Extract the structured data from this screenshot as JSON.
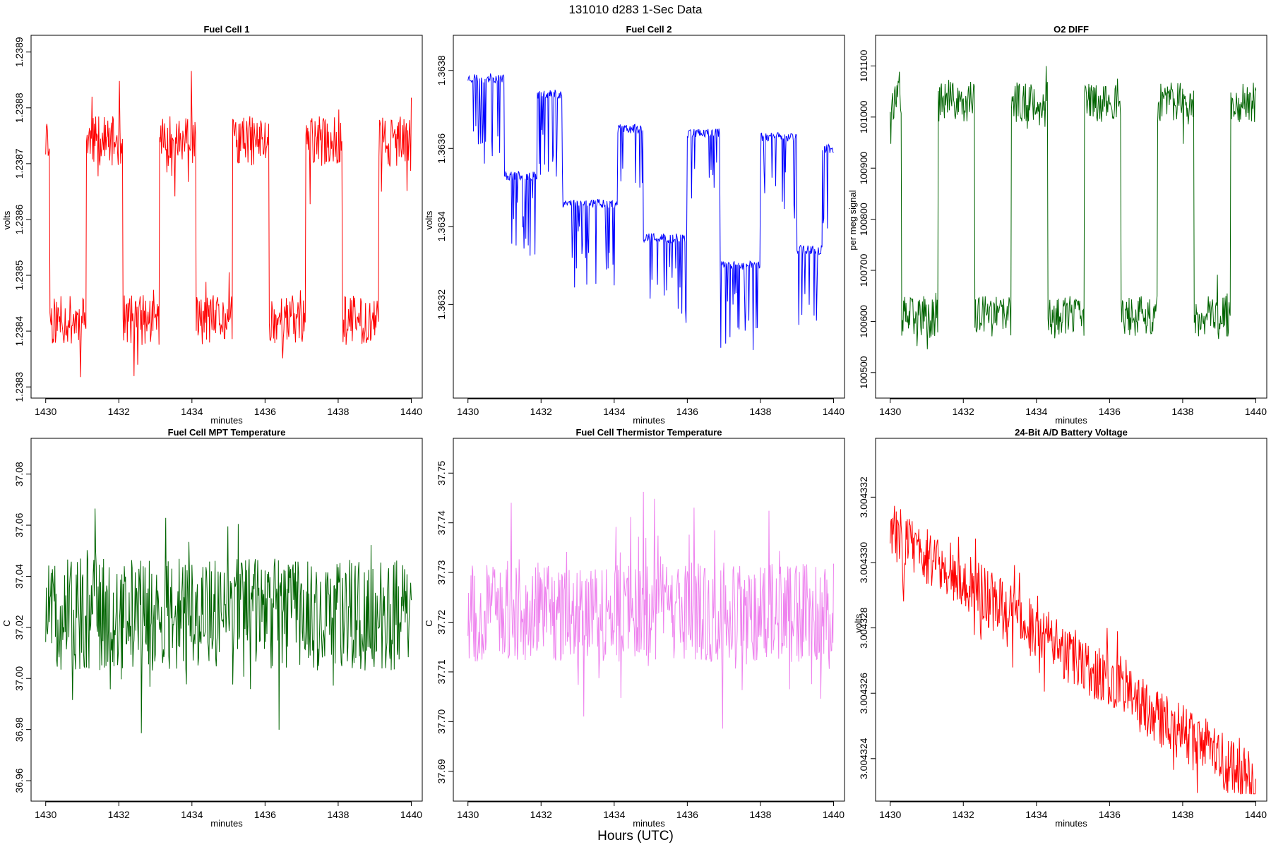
{
  "figure": {
    "title": "131010   d283   1-Sec Data",
    "xlabel": "Hours (UTC)"
  },
  "chart_data": [
    {
      "type": "line",
      "title": "Fuel Cell 1",
      "xlabel": "minutes",
      "ylabel": "volts",
      "color": "#ff0000",
      "xlim": [
        1429.6,
        1440.3
      ],
      "ylim": [
        1.23828,
        1.23893
      ],
      "xticks": [
        "1430",
        "1432",
        "1434",
        "1436",
        "1438",
        "1440"
      ],
      "yticks": [
        "1.2383",
        "1.2384",
        "1.2385",
        "1.2386",
        "1.2387",
        "1.2388",
        "1.2389"
      ],
      "x_range": [
        1430,
        1440
      ],
      "pattern": "square",
      "params": {
        "mid": 1.23858,
        "amp": 0.00016,
        "period": 2.0,
        "phase": 0.9,
        "noise": 4.5e-05,
        "trend": 0,
        "seed": 11,
        "spike": 9e-05
      }
    },
    {
      "type": "line",
      "title": "Fuel Cell 2",
      "xlabel": "minutes",
      "ylabel": "volts",
      "color": "#0000ff",
      "xlim": [
        1429.6,
        1440.3
      ],
      "ylim": [
        1.36296,
        1.36389
      ],
      "xticks": [
        "1430",
        "1432",
        "1434",
        "1436",
        "1438",
        "1440"
      ],
      "yticks": [
        "1.3632",
        "1.3634",
        "1.3636",
        "1.3638"
      ],
      "x_range": [
        1430,
        1440
      ],
      "pattern": "steps",
      "params": {
        "levels": [
          [
            1430.0,
            1.36378
          ],
          [
            1431.0,
            1.36353
          ],
          [
            1431.9,
            1.36374
          ],
          [
            1432.6,
            1.36346
          ],
          [
            1434.1,
            1.36365
          ],
          [
            1434.8,
            1.36337
          ],
          [
            1436.0,
            1.36364
          ],
          [
            1436.9,
            1.3633
          ],
          [
            1438.0,
            1.36363
          ],
          [
            1439.0,
            1.36334
          ],
          [
            1439.7,
            1.3636
          ]
        ],
        "dip": 0.00022,
        "noise": 1.2e-05,
        "seed": 23
      }
    },
    {
      "type": "line",
      "title": "O2 DIFF",
      "xlabel": "minutes",
      "ylabel": "per meg signal",
      "color": "#006400",
      "xlim": [
        1429.6,
        1440.3
      ],
      "ylim": [
        100450,
        101160
      ],
      "xticks": [
        "1430",
        "1432",
        "1434",
        "1436",
        "1438",
        "1440"
      ],
      "yticks": [
        "100500",
        "100600",
        "100700",
        "100800",
        "100900",
        "101000",
        "101100"
      ],
      "x_range": [
        1430,
        1440
      ],
      "pattern": "square",
      "params": {
        "mid": 100820,
        "amp": 210,
        "period": 2.0,
        "phase": 0.7,
        "noise": 40,
        "trend": 0,
        "seed": 37,
        "spike": 60
      }
    },
    {
      "type": "line",
      "title": "Fuel Cell MPT Temperature",
      "xlabel": "minutes",
      "ylabel": "C",
      "color": "#006400",
      "xlim": [
        1429.6,
        1440.3
      ],
      "ylim": [
        36.952,
        37.094
      ],
      "xticks": [
        "1430",
        "1432",
        "1434",
        "1436",
        "1438",
        "1440"
      ],
      "yticks": [
        "36.96",
        "36.98",
        "37.00",
        "37.02",
        "37.04",
        "37.06",
        "37.08"
      ],
      "x_range": [
        1430,
        1440
      ],
      "pattern": "noise",
      "params": {
        "mid": 37.025,
        "noise": 0.022,
        "trend": 0,
        "seed": 51,
        "spike": 0.03
      }
    },
    {
      "type": "line",
      "title": "Fuel Cell Thermistor Temperature",
      "xlabel": "minutes",
      "ylabel": "C",
      "color": "#ee82ee",
      "xlim": [
        1429.6,
        1440.3
      ],
      "ylim": [
        37.684,
        37.757
      ],
      "xticks": [
        "1430",
        "1432",
        "1434",
        "1436",
        "1438",
        "1440"
      ],
      "yticks": [
        "37.69",
        "37.70",
        "37.71",
        "37.72",
        "37.73",
        "37.74",
        "37.75"
      ],
      "x_range": [
        1430,
        1440
      ],
      "pattern": "noise",
      "params": {
        "mid": 37.722,
        "noise": 0.01,
        "trend": 0,
        "seed": 67,
        "spike": 0.016
      }
    },
    {
      "type": "line",
      "title": "24-Bit A/D Battery Voltage",
      "xlabel": "minutes",
      "ylabel": "volts",
      "color": "#ff0000",
      "xlim": [
        1429.6,
        1440.3
      ],
      "ylim": [
        3.0043227,
        3.0043338
      ],
      "xticks": [
        "1430",
        "1432",
        "1434",
        "1436",
        "1438",
        "1440"
      ],
      "yticks": [
        "3.004324",
        "3.004326",
        "3.004328",
        "3.004330",
        "3.004332"
      ],
      "x_range": [
        1430,
        1440
      ],
      "pattern": "noise",
      "params": {
        "mid": 3.004331,
        "noise": 9e-07,
        "trend": -7.8e-07,
        "seed": 83,
        "spike": 1.2e-06
      }
    }
  ]
}
